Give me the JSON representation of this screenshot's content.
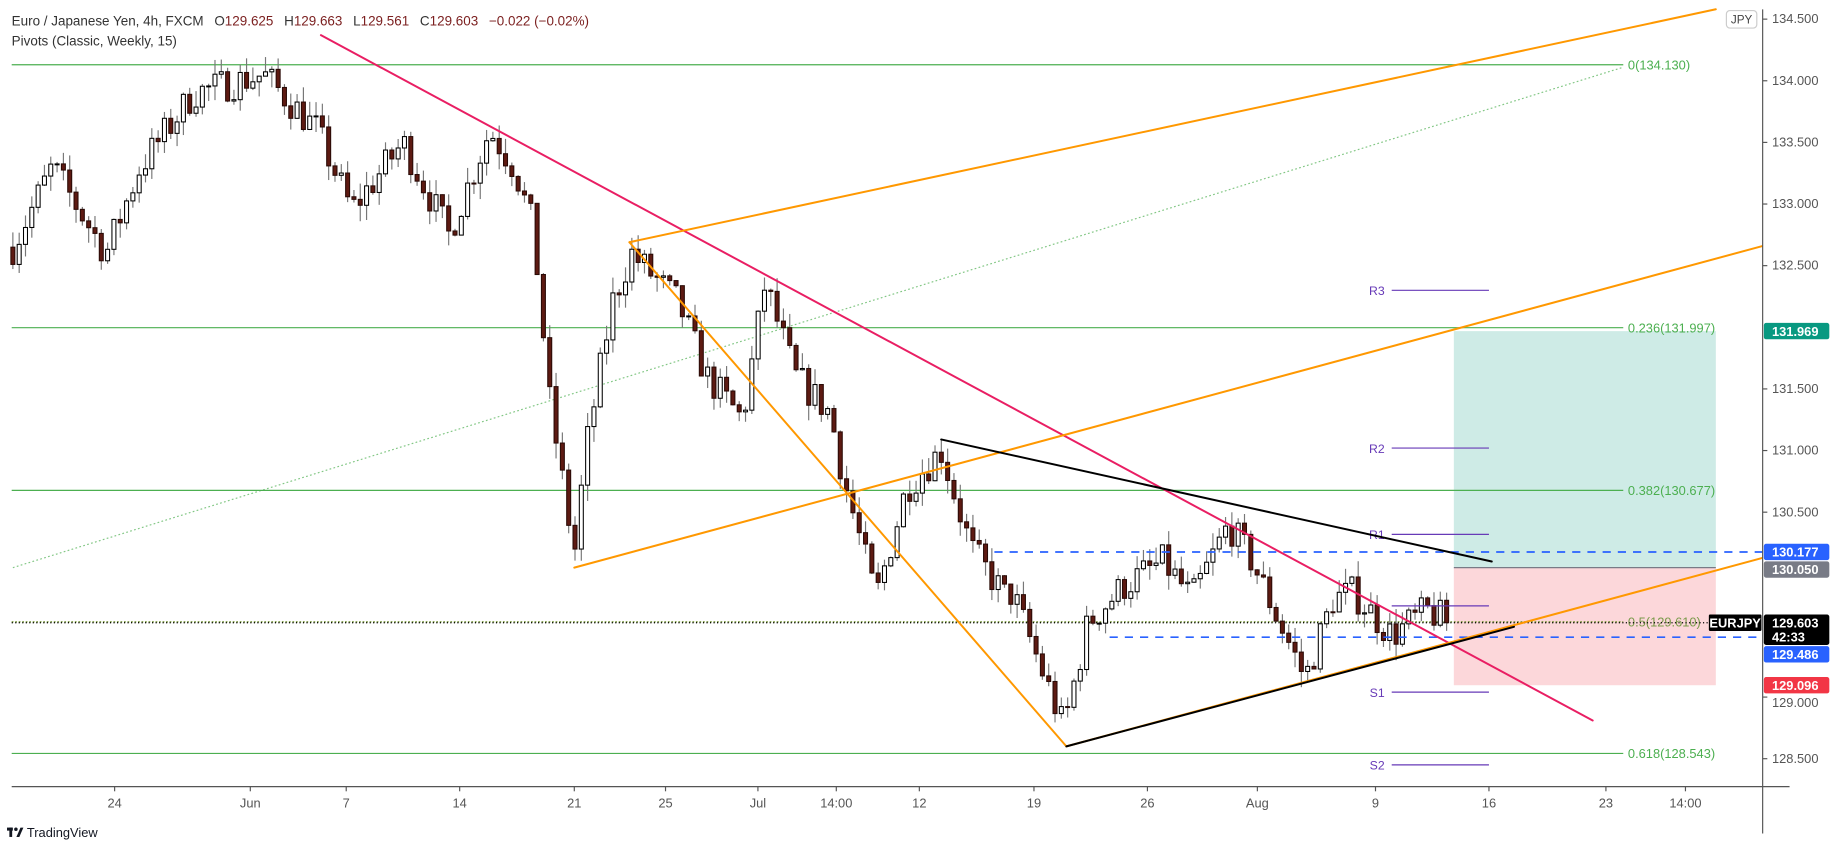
{
  "header": {
    "symbol_title": "Euro / Japanese Yen, 4h, FXCM",
    "open_label": "O",
    "open": "129.625",
    "high_label": "H",
    "high": "129.663",
    "low_label": "L",
    "low": "129.561",
    "close_label": "C",
    "close": "129.603",
    "change": "−0.022 (−0.02%)",
    "indicator": "Pivots (Classic, Weekly, 15)"
  },
  "currency_badge": "JPY",
  "branding": "TradingView",
  "chart_data": {
    "type": "candlestick",
    "symbol": "EURJPY",
    "interval": "4h",
    "ylim": [
      128.2,
      134.55
    ],
    "grid": false,
    "x_ticks": [
      {
        "label": "24",
        "date": "05-24 00:00"
      },
      {
        "label": "Jun",
        "date": "06-01 00:00"
      },
      {
        "label": "7",
        "date": "06-07 00:00"
      },
      {
        "label": "14",
        "date": "06-14 00:00"
      },
      {
        "label": "21",
        "date": "06-21 00:00"
      },
      {
        "label": "25",
        "date": "06-25 00:00"
      },
      {
        "label": "Jul",
        "date": "07-01 00:00"
      },
      {
        "label": "14:00",
        "date": "07-06 14:00"
      },
      {
        "label": "12",
        "date": "07-12 00:00"
      },
      {
        "label": "19",
        "date": "07-19 00:00"
      },
      {
        "label": "26",
        "date": "07-26 00:00"
      },
      {
        "label": "Aug",
        "date": "08-02 00:00"
      },
      {
        "label": "9",
        "date": "08-09 00:00"
      },
      {
        "label": "16",
        "date": "08-16 00:00"
      },
      {
        "label": "23",
        "date": "08-23 00:00"
      },
      {
        "label": "14:00",
        "date": "08-27 14:00"
      }
    ],
    "y_ticks": [
      {
        "label": "134.500",
        "value": 134.5
      },
      {
        "label": "134.000",
        "value": 134.0
      },
      {
        "label": "133.500",
        "value": 133.5
      },
      {
        "label": "133.000",
        "value": 133.0
      },
      {
        "label": "132.500",
        "value": 132.5
      },
      {
        "label": "131.500",
        "value": 131.5
      },
      {
        "label": "131.000",
        "value": 131.0
      },
      {
        "label": "130.500",
        "value": 130.5
      },
      {
        "label": "129.000",
        "value": 129.0
      },
      {
        "label": "128.500",
        "value": 128.5
      }
    ],
    "price_path": [
      {
        "date": "05-18 00:00",
        "price": 132.65
      },
      {
        "date": "05-20 08:00",
        "price": 133.3
      },
      {
        "date": "05-23 12:00",
        "price": 132.6
      },
      {
        "date": "05-25 12:00",
        "price": 133.3
      },
      {
        "date": "05-28 16:00",
        "price": 133.9
      },
      {
        "date": "06-01 20:00",
        "price": 134.05
      },
      {
        "date": "06-05 04:00",
        "price": 133.6
      },
      {
        "date": "06-07 08:00",
        "price": 132.95
      },
      {
        "date": "06-10 12:00",
        "price": 133.5
      },
      {
        "date": "06-13 08:00",
        "price": 132.75
      },
      {
        "date": "06-15 20:00",
        "price": 133.6
      },
      {
        "date": "06-17 08:00",
        "price": 133.3
      },
      {
        "date": "06-18 12:00",
        "price": 132.8
      },
      {
        "date": "06-19 12:00",
        "price": 131.4
      },
      {
        "date": "06-21 00:00",
        "price": 130.15
      },
      {
        "date": "06-21 12:00",
        "price": 131.0
      },
      {
        "date": "06-22 16:00",
        "price": 132.2
      },
      {
        "date": "06-23 12:00",
        "price": 132.6
      },
      {
        "date": "06-25 20:00",
        "price": 132.2
      },
      {
        "date": "06-27 16:00",
        "price": 131.6
      },
      {
        "date": "06-30 00:00",
        "price": 131.25
      },
      {
        "date": "07-01 12:00",
        "price": 132.35
      },
      {
        "date": "07-03 16:00",
        "price": 131.6
      },
      {
        "date": "07-06 04:00",
        "price": 131.3
      },
      {
        "date": "07-07 00:00",
        "price": 130.8
      },
      {
        "date": "07-09 04:00",
        "price": 129.8
      },
      {
        "date": "07-11 04:00",
        "price": 130.7
      },
      {
        "date": "07-13 08:00",
        "price": 131.0
      },
      {
        "date": "07-15 04:00",
        "price": 130.2
      },
      {
        "date": "07-17 08:00",
        "price": 129.8
      },
      {
        "date": "07-17 16:00",
        "price": 129.85
      },
      {
        "date": "07-20 20:00",
        "price": 128.75
      },
      {
        "date": "07-22 08:00",
        "price": 129.6
      },
      {
        "date": "07-24 12:00",
        "price": 129.9
      },
      {
        "date": "07-27 00:00",
        "price": 130.1
      },
      {
        "date": "07-28 20:00",
        "price": 129.8
      },
      {
        "date": "07-31 04:00",
        "price": 130.4
      },
      {
        "date": "08-01 16:00",
        "price": 130.1
      },
      {
        "date": "08-03 00:00",
        "price": 129.7
      },
      {
        "date": "08-04 20:00",
        "price": 129.15
      },
      {
        "date": "08-06 12:00",
        "price": 129.8
      },
      {
        "date": "08-07 16:00",
        "price": 129.85
      },
      {
        "date": "08-10 00:00",
        "price": 129.5
      },
      {
        "date": "08-12 04:00",
        "price": 129.7
      },
      {
        "date": "08-13 16:00",
        "price": 129.603
      }
    ],
    "last_price": {
      "value": "129.603",
      "countdown": "42:33",
      "symbol_label": "EURJPY",
      "color": "#000000"
    },
    "price_tags": [
      {
        "value": "131.969",
        "price": 131.969,
        "color": "#089981"
      },
      {
        "value": "130.177",
        "price": 130.177,
        "color": "#2962ff"
      },
      {
        "value": "130.050",
        "price": 130.05,
        "color": "#787b86"
      },
      {
        "value": "129.486",
        "price": 129.486,
        "color": "#2962ff"
      },
      {
        "value": "129.096",
        "price": 129.096,
        "color": "#f23645"
      }
    ],
    "fibonacci": {
      "color": "#4caf50",
      "start": {
        "date": "05-18 00:00",
        "price": 130.05
      },
      "end": {
        "date": "08-24 00:00",
        "price": 134.11
      },
      "levels": [
        {
          "label": "0(134.130)",
          "price": 134.13
        },
        {
          "label": "0.236(131.997)",
          "price": 131.997
        },
        {
          "label": "0.382(130.677)",
          "price": 130.677
        },
        {
          "label": "0.5(129.610)",
          "price": 129.61
        },
        {
          "label": "0.618(128.543)",
          "price": 128.543
        }
      ]
    },
    "pivots": {
      "color": "#673ab7",
      "start": "08-10 00:00",
      "end": "08-16 00:00",
      "levels": [
        {
          "label": "R3",
          "price": 132.3
        },
        {
          "label": "R2",
          "price": 131.02
        },
        {
          "label": "R1",
          "price": 130.32
        },
        {
          "label": "",
          "price": 129.74
        },
        {
          "label": "S1",
          "price": 129.04
        },
        {
          "label": "S2",
          "price": 128.45
        }
      ]
    },
    "trendlines": [
      {
        "color": "#e91e63",
        "points": [
          {
            "date": "06-05 10:00",
            "price": 134.37
          },
          {
            "date": "08-22 05:00",
            "price": 128.81
          }
        ]
      },
      {
        "color": "#ff9800",
        "points": [
          {
            "date": "06-23 10:00",
            "price": 132.69
          },
          {
            "date": "08-29 08:00",
            "price": 134.58
          }
        ]
      },
      {
        "color": "#ff9800",
        "points": [
          {
            "date": "06-21 00:00",
            "price": 130.05
          },
          {
            "date": "09-01 01:00",
            "price": 132.66
          }
        ]
      },
      {
        "color": "#ff9800",
        "points": [
          {
            "date": "06-23 10:00",
            "price": 132.69
          },
          {
            "date": "07-21 00:00",
            "price": 128.6
          }
        ]
      },
      {
        "color": "#ff9800",
        "points": [
          {
            "date": "07-21 00:00",
            "price": 128.6
          },
          {
            "date": "09-01 01:00",
            "price": 130.13
          }
        ]
      },
      {
        "color": "#000000",
        "points": [
          {
            "date": "07-21 00:00",
            "price": 128.6
          },
          {
            "date": "08-17 12:00",
            "price": 129.57
          }
        ]
      },
      {
        "color": "#000000",
        "points": [
          {
            "date": "07-13 08:00",
            "price": 131.09
          },
          {
            "date": "08-16 04:00",
            "price": 130.1
          }
        ]
      }
    ],
    "horizontal_lines": [
      {
        "price": 130.177,
        "start": "07-16 14:00",
        "color": "#2962ff",
        "style": "dashed"
      },
      {
        "price": 129.486,
        "start": "07-23 16:00",
        "color": "#2962ff",
        "style": "dashed"
      }
    ],
    "position": {
      "type": "long",
      "entry": 130.05,
      "target": 131.969,
      "stop": 129.096,
      "start": "08-13 20:00",
      "end": "08-29 08:00",
      "profit_color": "#089981",
      "loss_color": "#f23645"
    }
  }
}
